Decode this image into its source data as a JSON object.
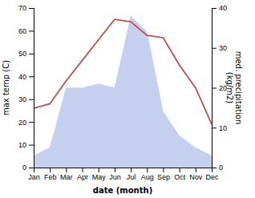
{
  "chart_data": {
    "type": "line",
    "categories": [
      "Jan",
      "Feb",
      "Mar",
      "Apr",
      "May",
      "Jun",
      "Jul",
      "Aug",
      "Sep",
      "Oct",
      "Nov",
      "Dec"
    ],
    "xlabel": "date (month)",
    "ylabel": "max temp (C)",
    "y2label": "med. precipitation\n(kg/m2)",
    "ylim": [
      0,
      70
    ],
    "yticks": [
      0,
      10,
      20,
      30,
      40,
      50,
      60,
      70
    ],
    "y2lim": [
      0,
      40
    ],
    "y2ticks": [
      0,
      10,
      20,
      30,
      40
    ],
    "grid": false,
    "series": [
      {
        "type": "area",
        "axis": "y2",
        "color": "#c5d0ee",
        "values": [
          3,
          5,
          20,
          20,
          21,
          20,
          38,
          34,
          14,
          8,
          5,
          3
        ]
      },
      {
        "type": "line",
        "color": "#c0504d",
        "values": [
          26,
          28,
          38,
          47,
          56,
          65,
          64,
          58,
          57,
          45,
          35,
          19
        ]
      }
    ]
  }
}
